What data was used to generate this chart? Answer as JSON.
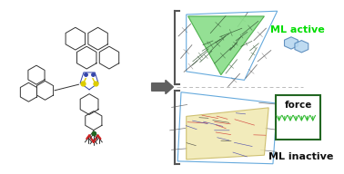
{
  "bg_color": "#ffffff",
  "arrow_color": "#606060",
  "bracket_color": "#555555",
  "green_tri_color": "#88dd88",
  "green_tri_edge": "#44aa44",
  "yellow_plane_color": "#f0e8b0",
  "yellow_plane_edge": "#c8b860",
  "ml_active_color": "#00dd00",
  "ml_inactive_color": "#111111",
  "force_box_edge": "#226622",
  "force_text_color": "#111111",
  "force_arrow_color": "#33bb33",
  "blue_outline_color": "#66aadd",
  "dashed_color": "#bbbbbb",
  "mol_color": "#333333",
  "mol_lw": 0.7,
  "red_color": "#cc2222",
  "yellow_color": "#ddcc00",
  "green_color": "#226622",
  "blue_color": "#3344aa",
  "ml_active_text": "ML active",
  "ml_inactive_text": "ML inactive",
  "force_text": "force"
}
